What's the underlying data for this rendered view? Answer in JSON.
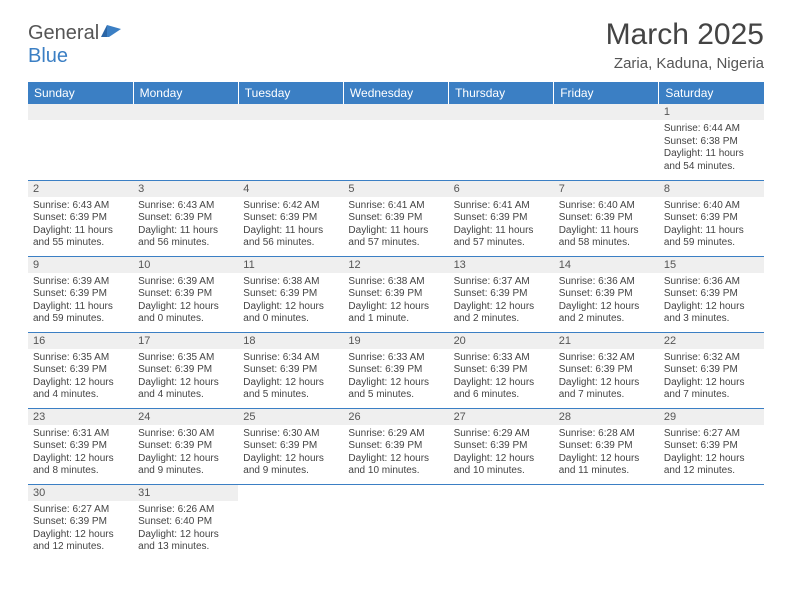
{
  "logo": {
    "general": "General",
    "blue": "Blue"
  },
  "title": "March 2025",
  "location": "Zaria, Kaduna, Nigeria",
  "colors": {
    "header_bg": "#3b7fc4",
    "header_text": "#ffffff",
    "daynum_bg": "#efefef",
    "row_border": "#3b7fc4",
    "text": "#444444"
  },
  "weekdays": [
    "Sunday",
    "Monday",
    "Tuesday",
    "Wednesday",
    "Thursday",
    "Friday",
    "Saturday"
  ],
  "weeks": [
    [
      null,
      null,
      null,
      null,
      null,
      null,
      {
        "n": "1",
        "sr": "6:44 AM",
        "ss": "6:38 PM",
        "dl": "11 hours and 54 minutes."
      }
    ],
    [
      {
        "n": "2",
        "sr": "6:43 AM",
        "ss": "6:39 PM",
        "dl": "11 hours and 55 minutes."
      },
      {
        "n": "3",
        "sr": "6:43 AM",
        "ss": "6:39 PM",
        "dl": "11 hours and 56 minutes."
      },
      {
        "n": "4",
        "sr": "6:42 AM",
        "ss": "6:39 PM",
        "dl": "11 hours and 56 minutes."
      },
      {
        "n": "5",
        "sr": "6:41 AM",
        "ss": "6:39 PM",
        "dl": "11 hours and 57 minutes."
      },
      {
        "n": "6",
        "sr": "6:41 AM",
        "ss": "6:39 PM",
        "dl": "11 hours and 57 minutes."
      },
      {
        "n": "7",
        "sr": "6:40 AM",
        "ss": "6:39 PM",
        "dl": "11 hours and 58 minutes."
      },
      {
        "n": "8",
        "sr": "6:40 AM",
        "ss": "6:39 PM",
        "dl": "11 hours and 59 minutes."
      }
    ],
    [
      {
        "n": "9",
        "sr": "6:39 AM",
        "ss": "6:39 PM",
        "dl": "11 hours and 59 minutes."
      },
      {
        "n": "10",
        "sr": "6:39 AM",
        "ss": "6:39 PM",
        "dl": "12 hours and 0 minutes."
      },
      {
        "n": "11",
        "sr": "6:38 AM",
        "ss": "6:39 PM",
        "dl": "12 hours and 0 minutes."
      },
      {
        "n": "12",
        "sr": "6:38 AM",
        "ss": "6:39 PM",
        "dl": "12 hours and 1 minute."
      },
      {
        "n": "13",
        "sr": "6:37 AM",
        "ss": "6:39 PM",
        "dl": "12 hours and 2 minutes."
      },
      {
        "n": "14",
        "sr": "6:36 AM",
        "ss": "6:39 PM",
        "dl": "12 hours and 2 minutes."
      },
      {
        "n": "15",
        "sr": "6:36 AM",
        "ss": "6:39 PM",
        "dl": "12 hours and 3 minutes."
      }
    ],
    [
      {
        "n": "16",
        "sr": "6:35 AM",
        "ss": "6:39 PM",
        "dl": "12 hours and 4 minutes."
      },
      {
        "n": "17",
        "sr": "6:35 AM",
        "ss": "6:39 PM",
        "dl": "12 hours and 4 minutes."
      },
      {
        "n": "18",
        "sr": "6:34 AM",
        "ss": "6:39 PM",
        "dl": "12 hours and 5 minutes."
      },
      {
        "n": "19",
        "sr": "6:33 AM",
        "ss": "6:39 PM",
        "dl": "12 hours and 5 minutes."
      },
      {
        "n": "20",
        "sr": "6:33 AM",
        "ss": "6:39 PM",
        "dl": "12 hours and 6 minutes."
      },
      {
        "n": "21",
        "sr": "6:32 AM",
        "ss": "6:39 PM",
        "dl": "12 hours and 7 minutes."
      },
      {
        "n": "22",
        "sr": "6:32 AM",
        "ss": "6:39 PM",
        "dl": "12 hours and 7 minutes."
      }
    ],
    [
      {
        "n": "23",
        "sr": "6:31 AM",
        "ss": "6:39 PM",
        "dl": "12 hours and 8 minutes."
      },
      {
        "n": "24",
        "sr": "6:30 AM",
        "ss": "6:39 PM",
        "dl": "12 hours and 9 minutes."
      },
      {
        "n": "25",
        "sr": "6:30 AM",
        "ss": "6:39 PM",
        "dl": "12 hours and 9 minutes."
      },
      {
        "n": "26",
        "sr": "6:29 AM",
        "ss": "6:39 PM",
        "dl": "12 hours and 10 minutes."
      },
      {
        "n": "27",
        "sr": "6:29 AM",
        "ss": "6:39 PM",
        "dl": "12 hours and 10 minutes."
      },
      {
        "n": "28",
        "sr": "6:28 AM",
        "ss": "6:39 PM",
        "dl": "12 hours and 11 minutes."
      },
      {
        "n": "29",
        "sr": "6:27 AM",
        "ss": "6:39 PM",
        "dl": "12 hours and 12 minutes."
      }
    ],
    [
      {
        "n": "30",
        "sr": "6:27 AM",
        "ss": "6:39 PM",
        "dl": "12 hours and 12 minutes."
      },
      {
        "n": "31",
        "sr": "6:26 AM",
        "ss": "6:40 PM",
        "dl": "12 hours and 13 minutes."
      },
      null,
      null,
      null,
      null,
      null
    ]
  ],
  "labels": {
    "sunrise": "Sunrise: ",
    "sunset": "Sunset: ",
    "daylight": "Daylight: "
  }
}
